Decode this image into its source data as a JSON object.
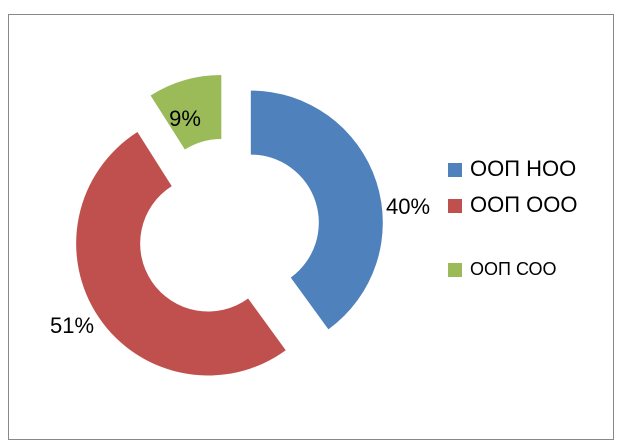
{
  "chart_data": {
    "type": "pie",
    "donut": true,
    "categories": [
      "ООП НОО",
      "ООП ООО",
      "ООП СОО"
    ],
    "values": [
      40,
      51,
      9
    ],
    "value_labels": [
      "40%",
      "51%",
      "9%"
    ],
    "colors": [
      "#4f81bd",
      "#c0504d",
      "#9bbb59"
    ],
    "legend": "right"
  }
}
